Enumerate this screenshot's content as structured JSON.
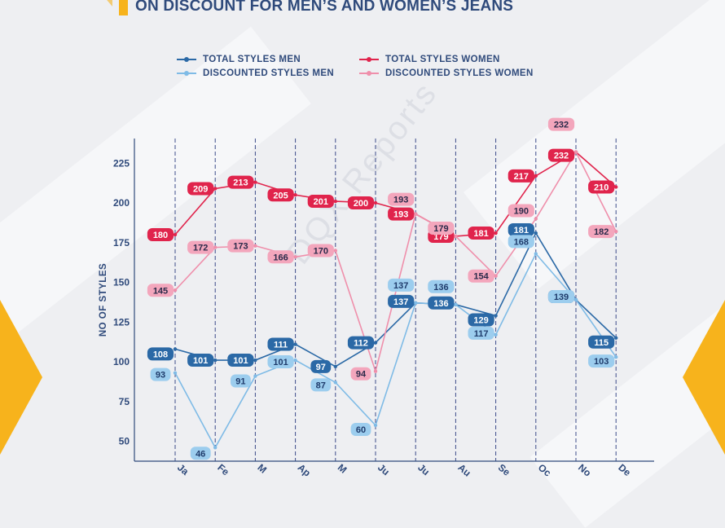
{
  "page": {
    "title": "ON DISCOUNT FOR MEN’S AND WOMEN’S JEANS",
    "watermark": "DQX Reports"
  },
  "legend": [
    {
      "label": "TOTAL STYLES MEN",
      "color": "#2b69a6"
    },
    {
      "label": "DISCOUNTED STYLES MEN",
      "color": "#7fbbe6"
    },
    {
      "label": "TOTAL STYLES WOMEN",
      "color": "#e0244c"
    },
    {
      "label": "DISCOUNTED STYLES WOMEN",
      "color": "#ef8fab"
    }
  ],
  "chart_data": {
    "type": "line",
    "ylabel": "NO OF STYLES",
    "xlabel": "",
    "ylim": [
      40,
      238
    ],
    "yticks": [
      50,
      75,
      100,
      125,
      150,
      175,
      200,
      225
    ],
    "grid": "vertical dashed",
    "legend_position": "top",
    "categories": [
      "Jan",
      "Feb",
      "Mar",
      "Apr",
      "May",
      "Jun",
      "Jul",
      "Aug",
      "Sep",
      "Oct",
      "Nov",
      "Dec"
    ],
    "category_labels_visible": [
      "Ja",
      "Fe",
      "M",
      "Ap",
      "M",
      "Ju",
      "Ju",
      "Au",
      "Se",
      "Oc",
      "No",
      "De"
    ],
    "series": [
      {
        "name": "TOTAL STYLES MEN",
        "color": "#2b69a6",
        "label_bg": "#2b69a6",
        "label_fg": "#ffffff",
        "values": [
          108,
          101,
          101,
          111,
          97,
          112,
          137,
          136,
          129,
          181,
          139,
          115
        ]
      },
      {
        "name": "DISCOUNTED STYLES MEN",
        "color": "#7fbbe6",
        "label_bg": "#9ccdee",
        "label_fg": "#1f3b6b",
        "values": [
          93,
          46,
          91,
          101,
          87,
          60,
          137,
          136,
          117,
          168,
          139,
          103
        ]
      },
      {
        "name": "TOTAL STYLES WOMEN",
        "color": "#e0244c",
        "label_bg": "#e0244c",
        "label_fg": "#ffffff",
        "values": [
          180,
          209,
          213,
          205,
          201,
          200,
          193,
          179,
          181,
          217,
          232,
          210
        ]
      },
      {
        "name": "DISCOUNTED STYLES WOMEN",
        "color": "#ef8fab",
        "label_bg": "#f3a6bc",
        "label_fg": "#2a2a4a",
        "values": [
          145,
          172,
          173,
          166,
          170,
          94,
          193,
          179,
          154,
          190,
          232,
          182
        ]
      }
    ]
  }
}
